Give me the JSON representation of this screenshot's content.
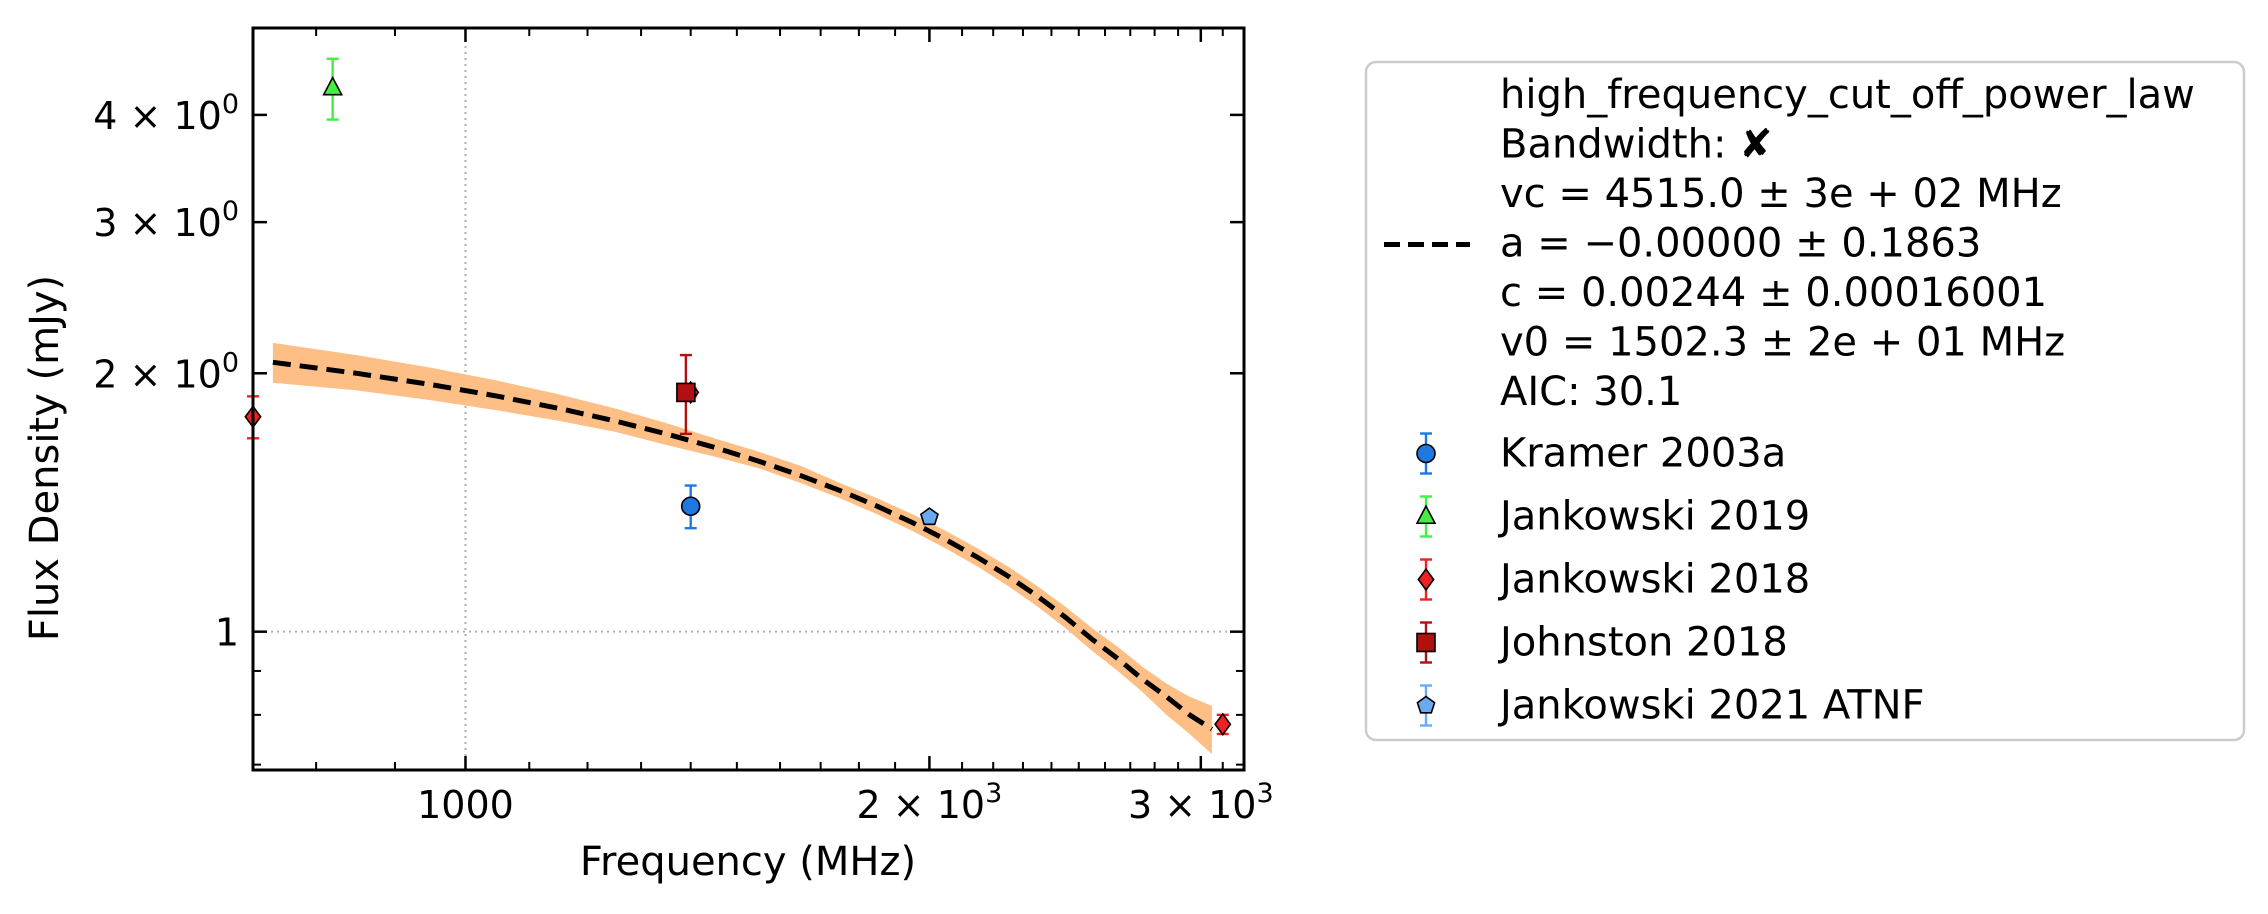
{
  "chart_data": {
    "type": "scatter",
    "xlabel": "Frequency (MHz)",
    "ylabel": "Flux Density (mJy)",
    "xscale": "log",
    "yscale": "log",
    "xlim": [
      728,
      3200
    ],
    "ylim": [
      0.69,
      5.05
    ],
    "grid": "dotted at 1000 MHz and 1 mJy",
    "legend_position": "outside right",
    "x_ticks": [
      {
        "value": 1000,
        "base": "1000",
        "exp": ""
      },
      {
        "value": 2000,
        "base": "2 × 10",
        "exp": "3"
      },
      {
        "value": 3000,
        "base": "3 × 10",
        "exp": "3"
      }
    ],
    "y_ticks": [
      {
        "value": 1,
        "base": "1",
        "exp": ""
      },
      {
        "value": 2,
        "base": "2 × 10",
        "exp": "0"
      },
      {
        "value": 3,
        "base": "3 × 10",
        "exp": "0"
      },
      {
        "value": 4,
        "base": "4 × 10",
        "exp": "0"
      }
    ],
    "fit": {
      "name": "high_frequency_cut_off_power_law",
      "legend_lines": [
        "high_frequency_cut_off_power_law",
        "Bandwidth: ✘",
        "vc = 4515.0 ± 3e + 02 MHz",
        "a = −0.00000 ± 0.1863",
        "c = 0.00244 ± 0.00016001",
        "v0 = 1502.3 ± 2e + 01 MHz",
        "AIC: 30.1"
      ],
      "color": "#000000",
      "band_color": "#fdbf85",
      "x": [
        750,
        850,
        950,
        1050,
        1150,
        1250,
        1350,
        1450,
        1550,
        1650,
        1750,
        1850,
        1950,
        2050,
        2150,
        2250,
        2350,
        2450,
        2550,
        2650,
        2750,
        2850,
        2950,
        3050
      ],
      "y": [
        2.06,
        2.0,
        1.94,
        1.88,
        1.82,
        1.76,
        1.7,
        1.64,
        1.58,
        1.52,
        1.46,
        1.4,
        1.34,
        1.28,
        1.22,
        1.16,
        1.1,
        1.04,
        0.98,
        0.93,
        0.88,
        0.84,
        0.8,
        0.77
      ],
      "y_low": [
        1.95,
        1.91,
        1.86,
        1.81,
        1.76,
        1.71,
        1.65,
        1.6,
        1.55,
        1.49,
        1.43,
        1.37,
        1.31,
        1.25,
        1.19,
        1.13,
        1.07,
        1.01,
        0.95,
        0.9,
        0.85,
        0.8,
        0.76,
        0.72
      ],
      "y_high": [
        2.17,
        2.1,
        2.03,
        1.96,
        1.89,
        1.82,
        1.75,
        1.68,
        1.62,
        1.56,
        1.49,
        1.43,
        1.37,
        1.31,
        1.25,
        1.19,
        1.13,
        1.07,
        1.01,
        0.96,
        0.91,
        0.87,
        0.84,
        0.82
      ]
    },
    "series": [
      {
        "name": "Kramer 2003a",
        "marker": "circle",
        "color": "#1f77e0",
        "points": [
          {
            "x": 1400,
            "y": 1.4,
            "err": 0.08
          }
        ]
      },
      {
        "name": "Jankowski 2019",
        "marker": "triangle",
        "color": "#44ee44",
        "points": [
          {
            "x": 820,
            "y": 4.3,
            "err": 0.35
          }
        ]
      },
      {
        "name": "Jankowski 2018",
        "marker": "diamond",
        "color": "#ee2222",
        "points": [
          {
            "x": 728,
            "y": 1.78,
            "err": 0.1
          },
          {
            "x": 1400,
            "y": 1.9,
            "err": 0.02
          },
          {
            "x": 3100,
            "y": 0.78,
            "err": 0.02
          }
        ]
      },
      {
        "name": "Johnston 2018",
        "marker": "square",
        "color": "#b01010",
        "points": [
          {
            "x": 1390,
            "y": 1.9,
            "err": 0.2
          }
        ]
      },
      {
        "name": "Jankowski 2021 ATNF",
        "marker": "pentagon",
        "color": "#6aaaf0",
        "points": [
          {
            "x": 2000,
            "y": 1.36,
            "err": 0.01
          }
        ]
      }
    ]
  }
}
